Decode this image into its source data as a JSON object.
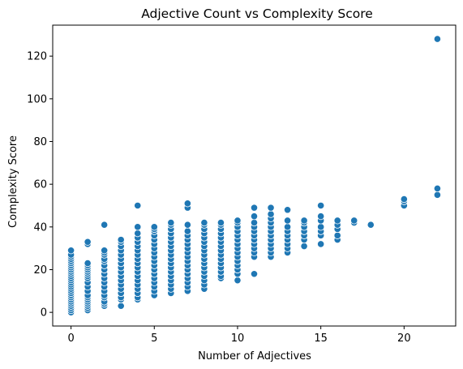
{
  "chart_data": {
    "type": "scatter",
    "title": "Adjective Count vs Complexity Score",
    "xlabel": "Number of Adjectives",
    "ylabel": "Complexity Score",
    "xlim": [
      -1.1,
      23.1
    ],
    "ylim": [
      -6.4,
      134.5
    ],
    "xticks": [
      0,
      5,
      10,
      15,
      20
    ],
    "yticks": [
      0,
      20,
      40,
      60,
      80,
      100,
      120
    ],
    "grid": false,
    "legend": "none",
    "marker_color": "#1f77b4",
    "marker_edge": "#ffffff",
    "columns": [
      {
        "x": 0,
        "y": [
          0,
          1,
          2,
          3,
          4,
          5,
          6,
          7,
          8,
          9,
          10,
          11,
          12,
          13,
          14,
          15,
          16,
          17,
          18,
          19,
          20,
          21,
          22,
          23,
          24,
          25,
          26,
          27,
          29
        ]
      },
      {
        "x": 1,
        "y": [
          1,
          2,
          3,
          4,
          5,
          6,
          7,
          8,
          10,
          12,
          14,
          16,
          17,
          18,
          19,
          20,
          21,
          22,
          23,
          32,
          33
        ]
      },
      {
        "x": 2,
        "y": [
          3,
          4,
          5,
          7,
          8,
          10,
          12,
          14,
          16,
          18,
          20,
          22,
          24,
          25,
          27,
          28,
          29,
          41
        ]
      },
      {
        "x": 3,
        "y": [
          3,
          6,
          7,
          9,
          11,
          13,
          15,
          17,
          19,
          21,
          23,
          25,
          27,
          29,
          31,
          33,
          34
        ]
      },
      {
        "x": 4,
        "y": [
          6,
          7,
          9,
          11,
          13,
          15,
          17,
          19,
          21,
          23,
          25,
          27,
          29,
          31,
          33,
          35,
          37,
          40,
          50
        ]
      },
      {
        "x": 5,
        "y": [
          8,
          10,
          12,
          14,
          16,
          18,
          20,
          22,
          24,
          26,
          28,
          30,
          32,
          34,
          36,
          38,
          39,
          40
        ]
      },
      {
        "x": 6,
        "y": [
          9,
          11,
          13,
          15,
          17,
          19,
          21,
          23,
          25,
          27,
          29,
          31,
          33,
          35,
          37,
          39,
          41,
          42
        ]
      },
      {
        "x": 7,
        "y": [
          10,
          12,
          14,
          16,
          18,
          20,
          22,
          24,
          26,
          28,
          30,
          32,
          34,
          36,
          38,
          41,
          49,
          51
        ]
      },
      {
        "x": 8,
        "y": [
          11,
          13,
          15,
          17,
          19,
          21,
          23,
          25,
          27,
          29,
          31,
          33,
          35,
          37,
          39,
          41,
          42
        ]
      },
      {
        "x": 9,
        "y": [
          16,
          17,
          19,
          21,
          23,
          25,
          27,
          29,
          31,
          33,
          35,
          37,
          39,
          41,
          42
        ]
      },
      {
        "x": 10,
        "y": [
          15,
          18,
          20,
          22,
          24,
          26,
          28,
          30,
          32,
          34,
          36,
          38,
          40,
          42,
          43
        ]
      },
      {
        "x": 11,
        "y": [
          18,
          26,
          28,
          30,
          32,
          34,
          36,
          38,
          40,
          42,
          45,
          49
        ]
      },
      {
        "x": 12,
        "y": [
          26,
          28,
          30,
          32,
          34,
          36,
          38,
          40,
          42,
          44,
          46,
          49
        ]
      },
      {
        "x": 13,
        "y": [
          28,
          30,
          32,
          34,
          36,
          38,
          40,
          43,
          48
        ]
      },
      {
        "x": 14,
        "y": [
          31,
          34,
          36,
          38,
          40,
          42,
          43
        ]
      },
      {
        "x": 15,
        "y": [
          32,
          36,
          38,
          40,
          43,
          45,
          50
        ]
      },
      {
        "x": 16,
        "y": [
          34,
          36,
          39,
          41,
          43
        ]
      },
      {
        "x": 17,
        "y": [
          42,
          43
        ]
      },
      {
        "x": 18,
        "y": [
          41
        ]
      },
      {
        "x": 20,
        "y": [
          50,
          52,
          53
        ]
      },
      {
        "x": 22,
        "y": [
          55,
          58,
          128
        ]
      }
    ]
  }
}
